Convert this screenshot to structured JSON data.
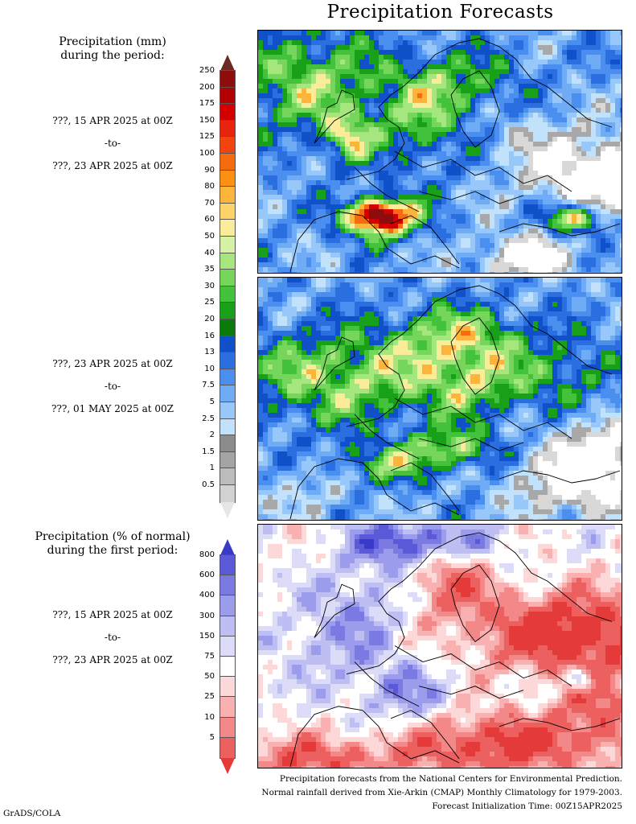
{
  "title": "Precipitation Forecasts",
  "precip_label": {
    "line1": "Precipitation (mm)",
    "line2": "during the period:"
  },
  "period1": {
    "start": "???, 15 APR 2025 at 00Z",
    "sep": "-to-",
    "end": "???, 23 APR 2025 at 00Z"
  },
  "period2": {
    "start": "???, 23 APR 2025 at 00Z",
    "sep": "-to-",
    "end": "???, 01 MAY 2025 at 00Z"
  },
  "pct_label": {
    "line1": "Precipitation (% of normal)",
    "line2": "during the first period:"
  },
  "period3": {
    "start": "???, 15 APR 2025 at 00Z",
    "sep": "-to-",
    "end": "???, 23 APR 2025 at 00Z"
  },
  "precip_scale": {
    "ticks": [
      "250",
      "200",
      "175",
      "150",
      "125",
      "100",
      "90",
      "80",
      "70",
      "60",
      "50",
      "40",
      "35",
      "30",
      "25",
      "20",
      "16",
      "13",
      "10",
      "7.5",
      "5",
      "2.5",
      "2",
      "1.5",
      "1",
      "0.5"
    ],
    "colors": [
      "#6b2a22",
      "#8e0c0c",
      "#b30000",
      "#d40000",
      "#e8240c",
      "#f2440e",
      "#f66a10",
      "#fb9012",
      "#fcb43a",
      "#fdd26a",
      "#fbec9a",
      "#d6f2a6",
      "#a6e67e",
      "#76d65c",
      "#44c23c",
      "#18a018",
      "#0a7a0a",
      "#1050c8",
      "#2a6ee0",
      "#4a8ef0",
      "#70acf6",
      "#98c8fa",
      "#c2e2fc",
      "#8c8c8c",
      "#a4a4a4",
      "#bcbcbc",
      "#d2d2d2",
      "#e6e6e6"
    ]
  },
  "pct_scale": {
    "ticks": [
      "800",
      "600",
      "400",
      "300",
      "150",
      "75",
      "50",
      "25",
      "10",
      "5"
    ],
    "colors": [
      "#3a3ac8",
      "#5a5ad8",
      "#7a7ae2",
      "#9c9cec",
      "#bebef2",
      "#dcdcf8",
      "#ffffff",
      "#fcd8d8",
      "#f8b0b0",
      "#f28888",
      "#ec6060",
      "#e43a3a"
    ]
  },
  "footer": {
    "line1": "Precipitation forecasts from the National Centers for Environmental Prediction.",
    "line2": "Normal rainfall derived from Xie-Arkin (CMAP) Monthly Climatology for 1979-2003.",
    "line3": "Forecast Initialization Time: 00Z15APR2025"
  },
  "credit": "GrADS/COLA"
}
